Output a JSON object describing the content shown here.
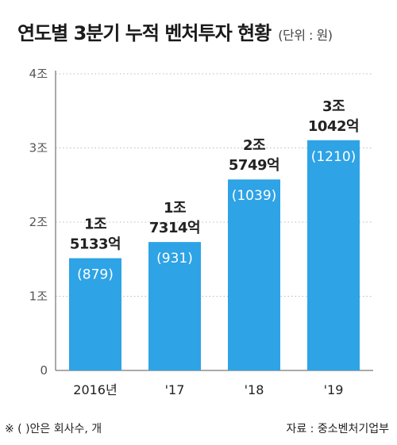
{
  "title": "연도별 3분기 누적 벤처투자 현황",
  "unit": "(단위 : 원)",
  "footnote": "※ ( )안은 회사수, 개",
  "source": "자료 : 중소벤처기업부",
  "colors": {
    "bar": "#2ea3e6",
    "text": "#222222",
    "axis": "#555555",
    "grid": "#bbbbbb"
  },
  "chart_data": {
    "type": "bar",
    "categories": [
      "2016년",
      "'17",
      "'18",
      "'19"
    ],
    "values": [
      1.5133,
      1.7314,
      2.5749,
      3.1042
    ],
    "value_labels_line1": [
      "1조",
      "1조",
      "2조",
      "3조"
    ],
    "value_labels_line2": [
      "5133억",
      "7314억",
      "5749억",
      "1042억"
    ],
    "company_counts": [
      "(879)",
      "(931)",
      "(1039)",
      "(1210)"
    ],
    "y_ticks": [
      0,
      1,
      2,
      3,
      4
    ],
    "y_tick_labels": [
      "0",
      "1조",
      "2조",
      "3조",
      "4조"
    ],
    "ylim": [
      0,
      4
    ],
    "grid": true,
    "title": "연도별 3분기 누적 벤처투자 현황",
    "ylabel": "",
    "xlabel": ""
  }
}
